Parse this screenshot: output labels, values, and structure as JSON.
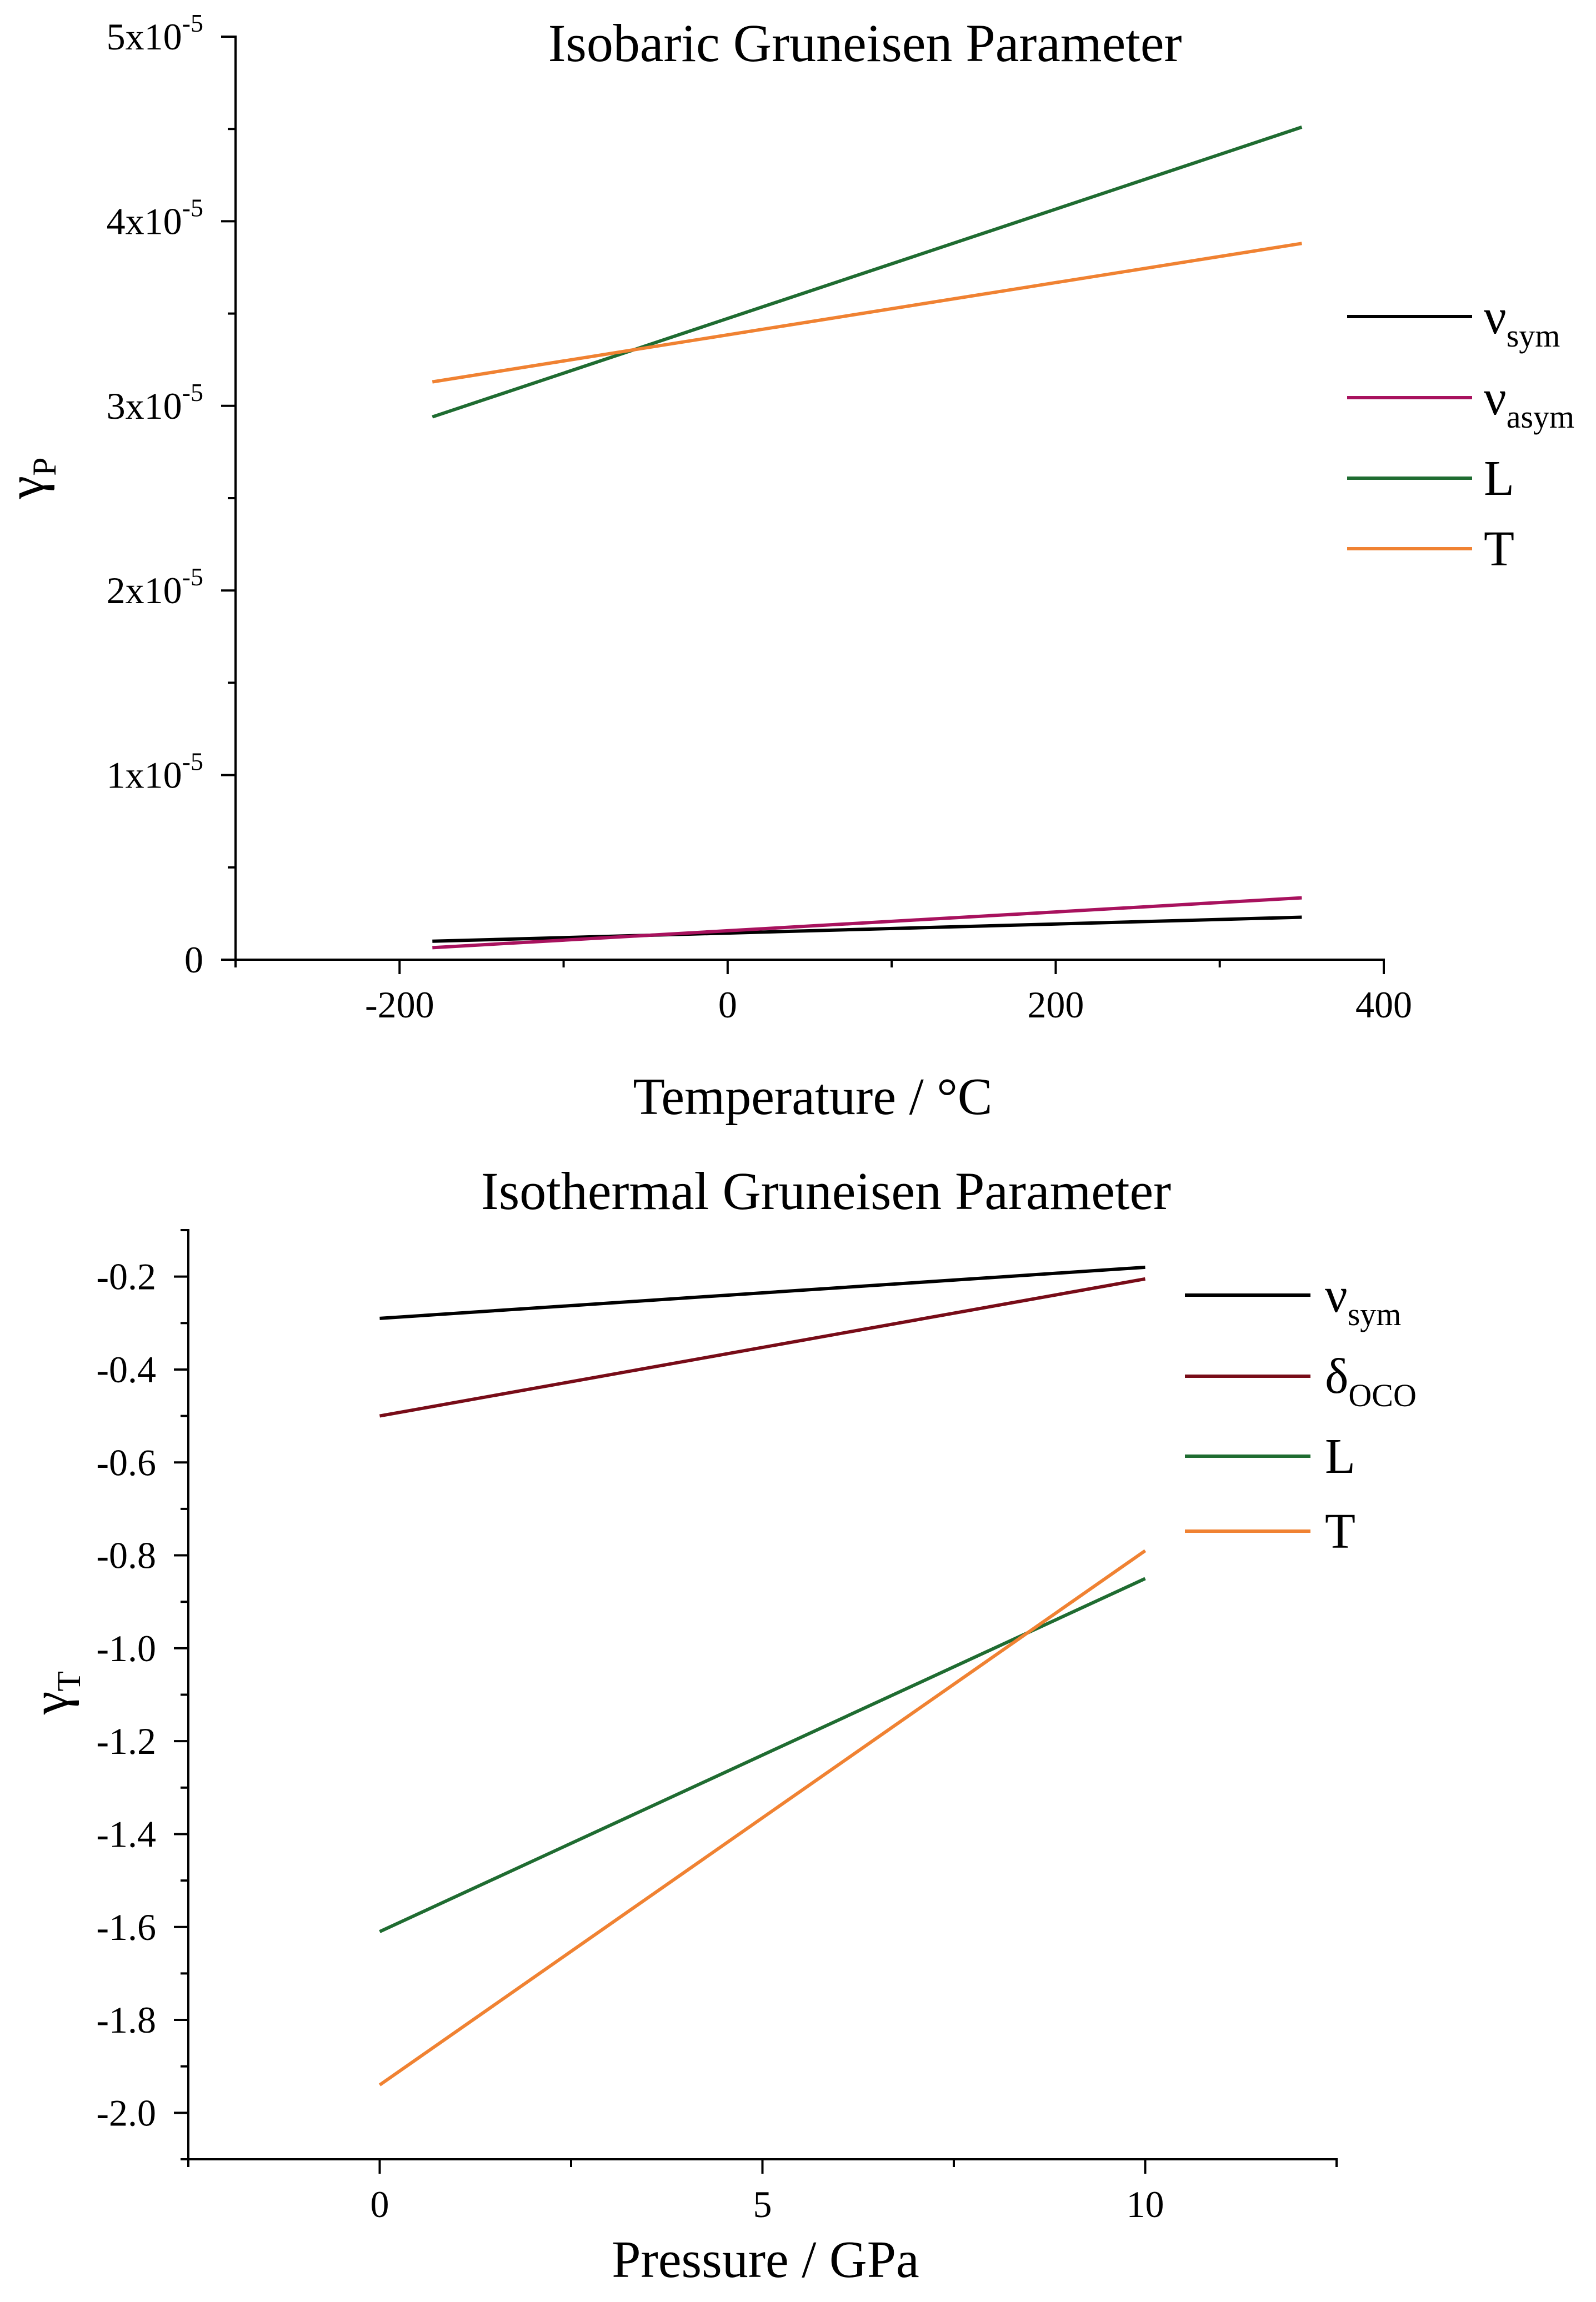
{
  "chart_data": [
    {
      "type": "line",
      "title": "Isobaric Gruneisen Parameter",
      "xlabel": "Temperature / °C",
      "ylabel": {
        "text": "γ",
        "sub": "P"
      },
      "xlim": [
        -300,
        400
      ],
      "ylim": [
        0,
        5e-05
      ],
      "xticks": [
        -200,
        0,
        200,
        400
      ],
      "xtick_labels": [
        "-200",
        "0",
        "200",
        "400"
      ],
      "xticks_minor": [
        -300,
        -100,
        100,
        300
      ],
      "yticks": [
        0,
        1e-05,
        2e-05,
        3e-05,
        4e-05,
        5e-05
      ],
      "ytick_labels": [
        {
          "text": "0"
        },
        {
          "text": "1x10",
          "sup": "-5"
        },
        {
          "text": "2x10",
          "sup": "-5"
        },
        {
          "text": "3x10",
          "sup": "-5"
        },
        {
          "text": "4x10",
          "sup": "-5"
        },
        {
          "text": "5x10",
          "sup": "-5"
        }
      ],
      "yticks_minor": [
        5e-06,
        1.5e-05,
        2.5e-05,
        3.5e-05,
        4.5e-05
      ],
      "grid": false,
      "legend_position": "top-right",
      "series": [
        {
          "label": "ν",
          "label_sub": "sym",
          "color": "#000000",
          "x": [
            -180,
            350
          ],
          "y": [
            1e-06,
            2.3e-06
          ]
        },
        {
          "label": "ν",
          "label_sub": "asym",
          "color": "#A8125E",
          "x": [
            -180,
            350
          ],
          "y": [
            6.5e-07,
            3.35e-06
          ]
        },
        {
          "label": "L",
          "color": "#1F6C31",
          "x": [
            -180,
            350
          ],
          "y": [
            2.94e-05,
            4.51e-05
          ]
        },
        {
          "label": "T",
          "color": "#F08232",
          "x": [
            -180,
            350
          ],
          "y": [
            3.13e-05,
            3.88e-05
          ]
        }
      ]
    },
    {
      "type": "line",
      "title": "Isothermal Gruneisen Parameter",
      "xlabel": "Pressure / GPa",
      "ylabel": {
        "text": "γ",
        "sub": "T"
      },
      "xlim": [
        -2.5,
        12.5
      ],
      "ylim": [
        -2.1,
        -0.1
      ],
      "xticks": [
        0,
        5,
        10
      ],
      "xtick_labels": [
        "0",
        "5",
        "10"
      ],
      "xticks_minor": [
        -2.5,
        2.5,
        7.5,
        12.5
      ],
      "yticks": [
        -0.2,
        -0.4,
        -0.6,
        -0.8,
        -1.0,
        -1.2,
        -1.4,
        -1.6,
        -1.8,
        -2.0
      ],
      "ytick_labels": [
        {
          "text": "-0.2"
        },
        {
          "text": "-0.4"
        },
        {
          "text": "-0.6"
        },
        {
          "text": "-0.8"
        },
        {
          "text": "-1.0"
        },
        {
          "text": "-1.2"
        },
        {
          "text": "-1.4"
        },
        {
          "text": "-1.6"
        },
        {
          "text": "-1.8"
        },
        {
          "text": "-2.0"
        }
      ],
      "yticks_minor": [
        -0.1,
        -0.3,
        -0.5,
        -0.7,
        -0.9,
        -1.1,
        -1.3,
        -1.5,
        -1.7,
        -1.9,
        -2.1
      ],
      "grid": false,
      "legend_position": "top-right",
      "series": [
        {
          "label": "ν",
          "label_sub": "sym",
          "color": "#000000",
          "x": [
            0,
            10
          ],
          "y": [
            -0.29,
            -0.18
          ]
        },
        {
          "label": "δ",
          "label_sub": "OCO",
          "color": "#780C18",
          "x": [
            0,
            10
          ],
          "y": [
            -0.5,
            -0.205
          ]
        },
        {
          "label": "L",
          "color": "#1F6C31",
          "x": [
            0,
            10
          ],
          "y": [
            -1.61,
            -0.85
          ]
        },
        {
          "label": "T",
          "color": "#F08232",
          "x": [
            0,
            10
          ],
          "y": [
            -1.94,
            -0.79
          ]
        }
      ]
    }
  ]
}
